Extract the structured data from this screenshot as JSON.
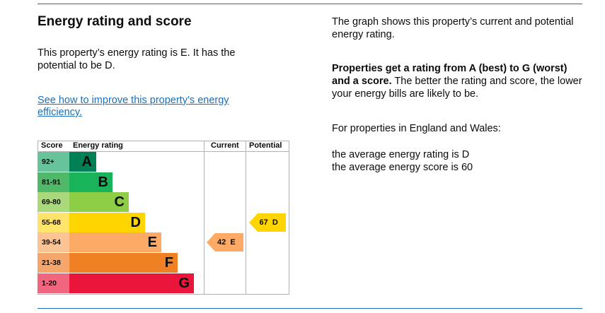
{
  "heading": "Energy rating and score",
  "description": "This property’s energy rating is E. It has the potential to be D.",
  "improve_link": "See how to improve this property’s energy efficiency.",
  "right": {
    "graph_intro": "The graph shows this property’s current and potential energy rating.",
    "rating_bold": "Properties get a rating from A (best) to G (worst) and a score.",
    "rating_rest": " The better the rating and score, the lower your energy bills are likely to be.",
    "region": "For properties in England and Wales:",
    "avg_rating": "the average energy rating is D",
    "avg_score": "the average energy score is 60"
  },
  "chart_data": {
    "type": "table",
    "headers": {
      "score": "Score",
      "rating": "Energy rating",
      "current": "Current",
      "potential": "Potential"
    },
    "bands": [
      {
        "letter": "A",
        "range": "92+",
        "color": "#008054",
        "score_bg": "#67c49a",
        "text": "#0b0c0c"
      },
      {
        "letter": "B",
        "range": "81-91",
        "color": "#19b459",
        "score_bg": "#4fb869",
        "text": "#0b0c0c"
      },
      {
        "letter": "C",
        "range": "69-80",
        "color": "#8dce46",
        "score_bg": "#a9d97a",
        "text": "#0b0c0c"
      },
      {
        "letter": "D",
        "range": "55-68",
        "color": "#ffd500",
        "score_bg": "#ffe36a",
        "text": "#0b0c0c"
      },
      {
        "letter": "E",
        "range": "39-54",
        "color": "#fcaa65",
        "score_bg": "#fcc495",
        "text": "#0b0c0c"
      },
      {
        "letter": "F",
        "range": "21-38",
        "color": "#ef8023",
        "score_bg": "#f4a66b",
        "text": "#0b0c0c"
      },
      {
        "letter": "G",
        "range": "1-20",
        "color": "#e9153b",
        "score_bg": "#f0667f",
        "text": "#0b0c0c"
      }
    ],
    "current": {
      "score": 42,
      "band": "E",
      "label": "42  E"
    },
    "potential": {
      "score": 67,
      "band": "D",
      "label": "67  D"
    }
  }
}
